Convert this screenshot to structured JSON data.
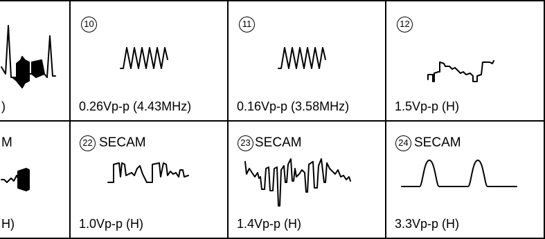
{
  "cells": [
    {
      "number": "",
      "tag": "",
      "caption": ")",
      "waveform": "partial-burst-waveform-icon"
    },
    {
      "number": "10",
      "tag": "",
      "caption": "0.26Vp-p (4.43MHz)",
      "waveform": "chroma-burst-waveform-icon"
    },
    {
      "number": "11",
      "tag": "",
      "caption": "0.16Vp-p (3.58MHz)",
      "waveform": "chroma-burst-waveform-icon"
    },
    {
      "number": "12",
      "tag": "",
      "caption": "1.5Vp-p (H)",
      "waveform": "staircase-waveform-icon"
    },
    {
      "number": "",
      "tag": "M",
      "caption": "H)",
      "waveform": "partial-pulse-waveform-icon"
    },
    {
      "number": "22",
      "tag": "SECAM",
      "caption": "1.0Vp-p (H)",
      "waveform": "square-pulse-waveform-icon"
    },
    {
      "number": "23",
      "tag": "SECAM",
      "caption": "1.4Vp-p (H)",
      "waveform": "video-pulse-waveform-icon"
    },
    {
      "number": "24",
      "tag": "SECAM",
      "caption": "3.3Vp-p (H)",
      "waveform": "double-hump-waveform-icon"
    }
  ]
}
